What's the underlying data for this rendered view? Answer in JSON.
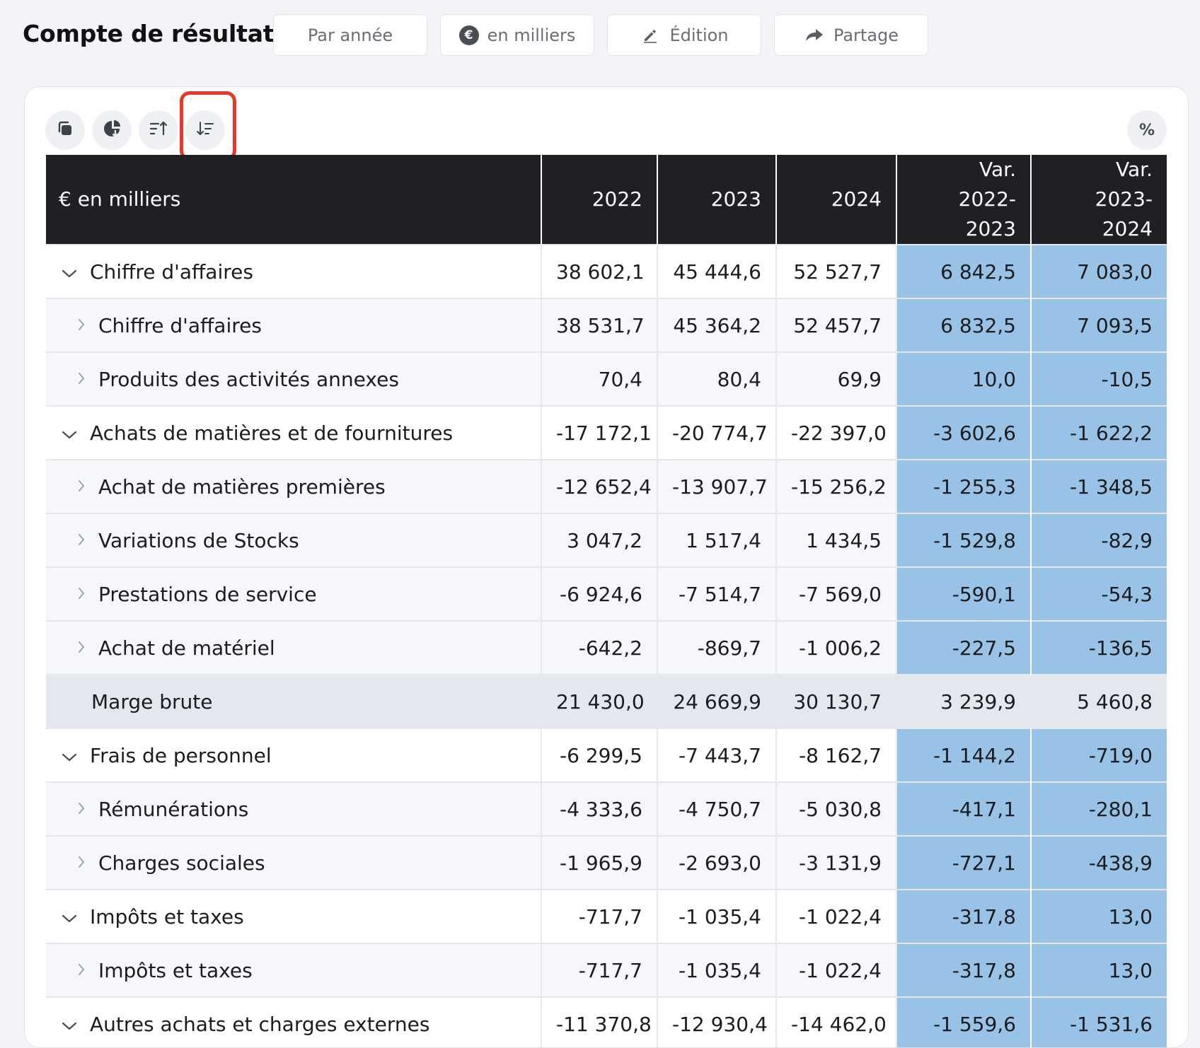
{
  "header": {
    "title": "Compte de résultat",
    "buttons": [
      {
        "label": "Par année",
        "icon": ""
      },
      {
        "label": "en milliers",
        "icon": "euro-circle-icon"
      },
      {
        "label": "Édition",
        "icon": "pencil-icon"
      },
      {
        "label": "Partage",
        "icon": "share-arrow-icon"
      }
    ]
  },
  "toolbar": {
    "tools": [
      {
        "icon": "copy-icon"
      },
      {
        "icon": "chart-download-icon"
      },
      {
        "icon": "sort-ascending-icon"
      },
      {
        "icon": "sort-descending-icon",
        "highlighted": true
      }
    ],
    "percent_label": "%"
  },
  "table": {
    "columns": {
      "label": "€ en milliers",
      "y2022": "2022",
      "y2023": "2023",
      "y2024": "2024",
      "var1_line1": "Var.",
      "var1_line2": "2022-2023",
      "var2_line1": "Var.",
      "var2_line2": "2023-2024"
    },
    "rows": [
      {
        "label": "Chiffre d'affaires",
        "level": 0,
        "v": [
          "38 602,1",
          "45 444,6",
          "52 527,7",
          "6 842,5",
          "7 083,0"
        ]
      },
      {
        "label": "Chiffre d'affaires",
        "level": 1,
        "v": [
          "38 531,7",
          "45 364,2",
          "52 457,7",
          "6 832,5",
          "7 093,5"
        ]
      },
      {
        "label": "Produits des activités annexes",
        "level": 1,
        "v": [
          "70,4",
          "80,4",
          "69,9",
          "10,0",
          "-10,5"
        ]
      },
      {
        "label": "Achats de matières et de fournitures",
        "level": 0,
        "v": [
          "-17 172,1",
          "-20 774,7",
          "-22 397,0",
          "-3 602,6",
          "-1 622,2"
        ]
      },
      {
        "label": "Achat de matières premières",
        "level": 1,
        "v": [
          "-12 652,4",
          "-13 907,7",
          "-15 256,2",
          "-1 255,3",
          "-1 348,5"
        ]
      },
      {
        "label": "Variations de Stocks",
        "level": 1,
        "v": [
          "3 047,2",
          "1 517,4",
          "1 434,5",
          "-1 529,8",
          "-82,9"
        ]
      },
      {
        "label": "Prestations de service",
        "level": 1,
        "v": [
          "-6 924,6",
          "-7 514,7",
          "-7 569,0",
          "-590,1",
          "-54,3"
        ]
      },
      {
        "label": "Achat de matériel",
        "level": 1,
        "v": [
          "-642,2",
          "-869,7",
          "-1 006,2",
          "-227,5",
          "-136,5"
        ]
      },
      {
        "label": "Marge brute",
        "level": "total",
        "v": [
          "21 430,0",
          "24 669,9",
          "30 130,7",
          "3 239,9",
          "5 460,8"
        ]
      },
      {
        "label": "Frais de personnel",
        "level": 0,
        "v": [
          "-6 299,5",
          "-7 443,7",
          "-8 162,7",
          "-1 144,2",
          "-719,0"
        ]
      },
      {
        "label": "Rémunérations",
        "level": 1,
        "v": [
          "-4 333,6",
          "-4 750,7",
          "-5 030,8",
          "-417,1",
          "-280,1"
        ]
      },
      {
        "label": "Charges sociales",
        "level": 1,
        "v": [
          "-1 965,9",
          "-2 693,0",
          "-3 131,9",
          "-727,1",
          "-438,9"
        ]
      },
      {
        "label": "Impôts et taxes",
        "level": 0,
        "v": [
          "-717,7",
          "-1 035,4",
          "-1 022,4",
          "-317,8",
          "13,0"
        ]
      },
      {
        "label": "Impôts et taxes",
        "level": 1,
        "v": [
          "-717,7",
          "-1 035,4",
          "-1 022,4",
          "-317,8",
          "13,0"
        ]
      },
      {
        "label": "Autres achats et charges externes",
        "level": 0,
        "v": [
          "-11 370,8",
          "-12 930,4",
          "-14 462,0",
          "-1 559,6",
          "-1 531,6"
        ]
      }
    ]
  },
  "colors": {
    "variation_fill": "#99c3e6",
    "header_bg": "#1f2024",
    "total_row_bg": "#e4e7ee",
    "highlight_border": "#e53a2b"
  }
}
